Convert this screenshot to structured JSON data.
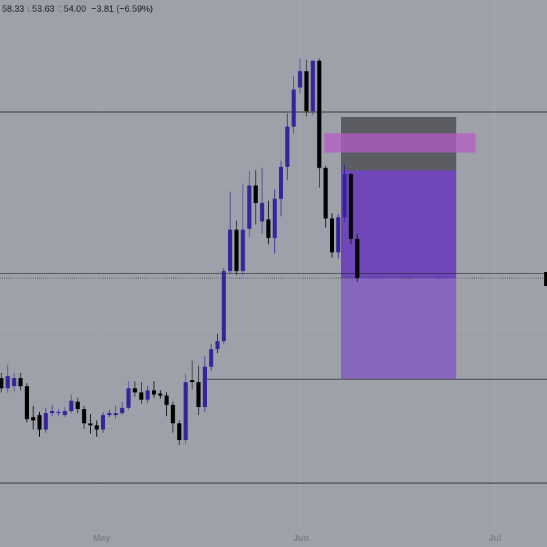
{
  "header": {
    "high": "58.33",
    "low_label": "L",
    "low": "53.63",
    "close_label": "C",
    "close": "54.00",
    "change": "−3.81 (−6.59%)"
  },
  "chart_data": {
    "type": "candlestick",
    "x_labels": [
      "May",
      "Jun",
      "Jul"
    ],
    "up_color": "#35249a",
    "down_color": "#000000",
    "ylim": [
      27.9,
      81
    ],
    "open": [
      44.3,
      43.3,
      43.5,
      44.3,
      43.5,
      40.5,
      40.7,
      39.3,
      40.9,
      40.9,
      40.7,
      41.1,
      42.0,
      41.3,
      39.9,
      39.7,
      39.3,
      40.7,
      40.7,
      40.9,
      41.4,
      43.3,
      42.9,
      42.2,
      43.1,
      42.8,
      42.6,
      41.7,
      39.9,
      38.3,
      44.1,
      43.9,
      41.5,
      45.4,
      47.1,
      47.9,
      54.7,
      58.7,
      54.7,
      58.8,
      63.0,
      59.5,
      59.7,
      57.9,
      61.7,
      64.8,
      68.7,
      72.5,
      74.1,
      70.2,
      75.1,
      64.7,
      59.8,
      56.5,
      59.9,
      64.1,
      57.81
    ],
    "high": [
      44.8,
      45.6,
      44.8,
      44.8,
      43.8,
      41.6,
      41.0,
      41.4,
      41.7,
      41.3,
      41.5,
      42.7,
      42.4,
      41.6,
      40.8,
      40.2,
      41.0,
      41.2,
      41.6,
      42.0,
      44.0,
      44.0,
      43.9,
      43.5,
      44.0,
      43.1,
      42.9,
      42.0,
      40.2,
      44.7,
      46.0,
      45.5,
      46.4,
      47.6,
      48.6,
      55.0,
      62.4,
      59.6,
      63.2,
      64.4,
      64.5,
      64.7,
      61.5,
      62.6,
      65.4,
      70.0,
      73.6,
      75.3,
      75.2,
      75.1,
      75.3,
      64.9,
      60.3,
      60.2,
      65.0,
      64.2,
      58.33
    ],
    "low": [
      42.9,
      42.9,
      43.0,
      43.1,
      40.0,
      39.3,
      38.6,
      39.0,
      40.6,
      40.6,
      40.5,
      40.9,
      40.9,
      39.4,
      38.9,
      38.6,
      39.0,
      40.5,
      40.4,
      40.7,
      41.2,
      42.5,
      41.8,
      41.9,
      42.4,
      42.3,
      40.6,
      39.0,
      37.8,
      37.9,
      43.2,
      40.7,
      41.0,
      45.0,
      46.7,
      47.6,
      54.4,
      54.3,
      54.3,
      58.0,
      59.2,
      58.3,
      57.3,
      56.4,
      60.0,
      63.5,
      68.0,
      71.9,
      69.7,
      69.8,
      62.8,
      58.9,
      56.0,
      55.9,
      59.5,
      57.3,
      53.63
    ],
    "close": [
      43.3,
      44.5,
      44.3,
      43.5,
      40.3,
      40.2,
      39.3,
      40.9,
      41.1,
      41.0,
      41.1,
      42.1,
      41.3,
      39.9,
      39.7,
      39.3,
      40.7,
      40.9,
      40.9,
      41.4,
      43.3,
      42.9,
      42.2,
      43.1,
      42.7,
      42.6,
      41.7,
      39.9,
      38.3,
      43.9,
      43.9,
      41.5,
      45.4,
      47.1,
      47.9,
      54.7,
      58.7,
      54.7,
      58.7,
      63.0,
      61.3,
      61.3,
      57.9,
      61.7,
      64.8,
      68.7,
      72.3,
      74.1,
      70.2,
      75.1,
      64.7,
      59.8,
      56.5,
      59.9,
      64.1,
      57.81,
      54.0
    ]
  }
}
